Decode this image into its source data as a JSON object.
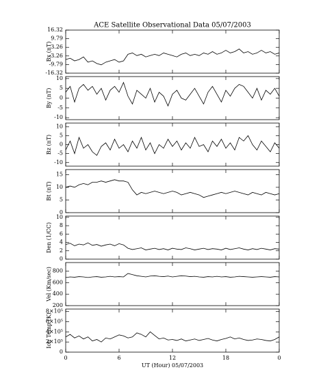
{
  "chart_data": {
    "type": "line",
    "title": "ACE Satellite Observational Data   05/07/2003",
    "xlabel": "UT (Hour)   05/07/2003",
    "x": [
      0,
      0.5,
      1,
      1.5,
      2,
      2.5,
      3,
      3.5,
      4,
      4.5,
      5,
      5.5,
      6,
      6.5,
      7,
      7.5,
      8,
      8.5,
      9,
      9.5,
      10,
      10.5,
      11,
      11.5,
      12,
      12.5,
      13,
      13.5,
      14,
      14.5,
      15,
      15.5,
      16,
      16.5,
      17,
      17.5,
      18,
      18.5,
      19,
      19.5,
      20,
      20.5,
      21,
      21.5,
      22,
      22.5,
      23,
      23.5,
      24
    ],
    "xlim": [
      0,
      24
    ],
    "xticks": [
      0,
      6,
      12,
      18,
      {
        "value": 24,
        "label": "0"
      }
    ],
    "color": "#000000",
    "panels": [
      {
        "ylabel": "Bx (nT)",
        "ylim": [
          -16.32,
          16.32
        ],
        "yticks": [
          16.32,
          9.79,
          3.26,
          -3.26,
          -9.79,
          -16.32
        ],
        "values": [
          -6,
          -5,
          -7,
          -6,
          -4,
          -8,
          -7,
          -9,
          -10,
          -8,
          -7,
          -6,
          -8,
          -7,
          -2,
          -1,
          -3,
          -2,
          -4,
          -3,
          -2,
          -3,
          -1,
          -2,
          -3,
          -4,
          -2,
          -1,
          -3,
          -2,
          -3,
          -1,
          -2,
          0,
          -2,
          -1,
          1,
          -1,
          0,
          2,
          -1,
          0,
          -2,
          -1,
          1,
          -1,
          0,
          -2,
          -1
        ]
      },
      {
        "ylabel": "By (nT)",
        "ylim": [
          -11,
          11
        ],
        "yticks": [
          -10,
          -5,
          0,
          5,
          10
        ],
        "values": [
          3,
          6,
          -2,
          5,
          7,
          4,
          6,
          2,
          5,
          -1,
          4,
          6,
          3,
          8,
          1,
          -3,
          4,
          2,
          0,
          5,
          -2,
          3,
          1,
          -4,
          2,
          4,
          0,
          -1,
          2,
          5,
          1,
          -3,
          3,
          6,
          2,
          -2,
          4,
          1,
          5,
          7,
          6,
          3,
          0,
          5,
          -1,
          4,
          2,
          5,
          1
        ]
      },
      {
        "ylabel": "Bz (nT)",
        "ylim": [
          -12,
          12
        ],
        "yticks": [
          -10,
          -5,
          0,
          5,
          10
        ],
        "values": [
          -3,
          2,
          -5,
          4,
          -2,
          0,
          -4,
          -6,
          -1,
          1,
          -3,
          3,
          -2,
          0,
          -4,
          2,
          -2,
          4,
          -3,
          1,
          -5,
          0,
          -2,
          3,
          -1,
          2,
          -3,
          1,
          -2,
          4,
          -1,
          0,
          -4,
          2,
          -1,
          3,
          -2,
          1,
          -3,
          4,
          2,
          5,
          0,
          -3,
          2,
          -1,
          -4,
          1,
          -2
        ]
      },
      {
        "ylabel": "Bt (nT)",
        "ylim": [
          0,
          17
        ],
        "yticks": [
          0,
          5,
          10,
          15
        ],
        "values": [
          10,
          10.5,
          10,
          11,
          11.5,
          11,
          12,
          12,
          12.5,
          12,
          12.5,
          13,
          12.5,
          12.5,
          12,
          9,
          7,
          8,
          7.5,
          8,
          8.5,
          8,
          7.5,
          8,
          8.5,
          8,
          7,
          7.5,
          8,
          7.5,
          7,
          6,
          6.5,
          7,
          7.5,
          8,
          7.5,
          8,
          8.5,
          8,
          7.5,
          7,
          8,
          7.5,
          7,
          8,
          7.5,
          7,
          7.5
        ]
      },
      {
        "ylabel": "Den (1/CC)",
        "ylim": [
          0,
          10.3
        ],
        "yticks": [
          0,
          2,
          4,
          6,
          8,
          10
        ],
        "values": [
          3.5,
          3.8,
          3.2,
          3.6,
          3.4,
          3.9,
          3.3,
          3.5,
          3.1,
          3.4,
          3.6,
          3.2,
          3.7,
          3.4,
          2.6,
          2.3,
          2.5,
          2.7,
          2.2,
          2.4,
          2.6,
          2.3,
          2.5,
          2.2,
          2.6,
          2.4,
          2.3,
          2.7,
          2.5,
          2.2,
          2.4,
          2.6,
          2.3,
          2.5,
          2.4,
          2.2,
          2.6,
          2.3,
          2.5,
          2.7,
          2.4,
          2.2,
          2.5,
          2.3,
          2.6,
          2.4,
          2.2,
          2.5,
          2.4
        ]
      },
      {
        "ylabel": "Vel (Km/sec)",
        "ylim": [
          200,
          950
        ],
        "yticks": [
          200,
          400,
          600,
          800
        ],
        "values": [
          690,
          700,
          695,
          705,
          700,
          690,
          700,
          705,
          695,
          700,
          710,
          700,
          705,
          700,
          760,
          740,
          720,
          710,
          700,
          715,
          720,
          710,
          705,
          715,
          700,
          710,
          720,
          715,
          705,
          710,
          700,
          695,
          705,
          700,
          710,
          700,
          705,
          695,
          700,
          710,
          705,
          700,
          695,
          700,
          705,
          700,
          695,
          705,
          700
        ]
      },
      {
        "ylabel": "Ion Temp (K)",
        "ylim": [
          0,
          850000
        ],
        "yticks": [
          0,
          {
            "value": 200000,
            "label": "2×10⁵"
          },
          {
            "value": 400000,
            "label": "4×10⁵"
          },
          {
            "value": 600000,
            "label": "6×10⁵"
          },
          {
            "value": 800000,
            "label": "8×10⁵"
          }
        ],
        "values": [
          300000,
          350000,
          280000,
          320000,
          260000,
          300000,
          220000,
          250000,
          200000,
          280000,
          260000,
          300000,
          340000,
          320000,
          280000,
          300000,
          380000,
          350000,
          300000,
          400000,
          330000,
          260000,
          280000,
          240000,
          250000,
          230000,
          260000,
          220000,
          240000,
          260000,
          230000,
          250000,
          270000,
          240000,
          220000,
          250000,
          270000,
          300000,
          260000,
          280000,
          250000,
          230000,
          240000,
          260000,
          250000,
          230000,
          220000,
          250000,
          300000
        ]
      }
    ]
  }
}
